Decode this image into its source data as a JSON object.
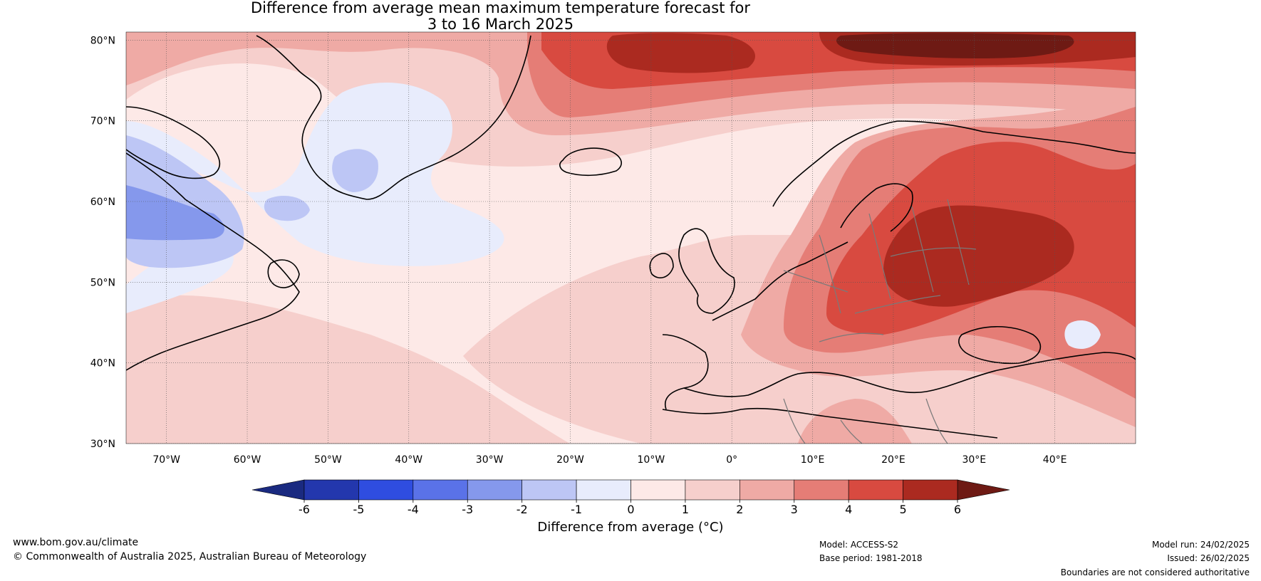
{
  "title_line1": "Difference from average mean maximum temperature forecast for",
  "title_line2": "3 to 16 March 2025",
  "map": {
    "lon_range": [
      -75,
      50
    ],
    "lat_range": [
      30,
      81
    ],
    "lat_ticks": [
      {
        "value": 80,
        "label": "80°N"
      },
      {
        "value": 70,
        "label": "70°N"
      },
      {
        "value": 60,
        "label": "60°N"
      },
      {
        "value": 50,
        "label": "50°N"
      },
      {
        "value": 40,
        "label": "40°N"
      },
      {
        "value": 30,
        "label": "30°N"
      }
    ],
    "lon_ticks": [
      {
        "value": -70,
        "label": "70°W"
      },
      {
        "value": -60,
        "label": "60°W"
      },
      {
        "value": -50,
        "label": "50°W"
      },
      {
        "value": -40,
        "label": "40°W"
      },
      {
        "value": -30,
        "label": "30°W"
      },
      {
        "value": -20,
        "label": "20°W"
      },
      {
        "value": -10,
        "label": "10°W"
      },
      {
        "value": 0,
        "label": "0°"
      },
      {
        "value": 10,
        "label": "10°E"
      },
      {
        "value": 20,
        "label": "20°E"
      },
      {
        "value": 30,
        "label": "30°E"
      },
      {
        "value": 40,
        "label": "40°E"
      }
    ],
    "gridlines": "dotted"
  },
  "colorbar": {
    "title": "Difference from average (°C)",
    "levels": [
      "-6",
      "-5",
      "-4",
      "-3",
      "-2",
      "-1",
      "0",
      "1",
      "2",
      "3",
      "4",
      "5",
      "6"
    ],
    "under_color": "#1a2a80",
    "over_color": "#6e1a14",
    "colors": [
      "#2337ad",
      "#2f4de0",
      "#5a72e8",
      "#8598ec",
      "#bdc6f5",
      "#e8ecfc",
      "#fde9e7",
      "#f6cfcc",
      "#efaaa5",
      "#e57d76",
      "#d84a40",
      "#ab2a20"
    ]
  },
  "footer": {
    "left1": "www.bom.gov.au/climate",
    "left2": "© Commonwealth of Australia 2025, Australian Bureau of Meteorology",
    "model": "Model: ACCESS-S2",
    "base_period": "Base period: 1981-2018",
    "model_run": "Model run: 24/02/2025",
    "issued": "Issued: 26/02/2025",
    "disclaimer": "Boundaries are not considered authoritative"
  }
}
